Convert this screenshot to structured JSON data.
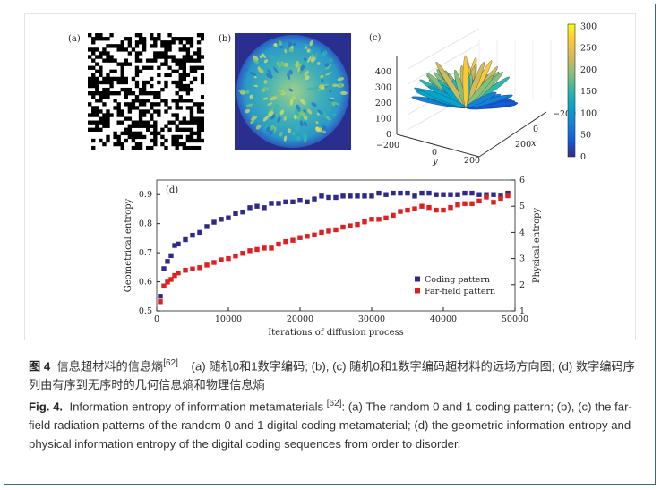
{
  "figure": {
    "panels": {
      "a": "(a)",
      "b": "(b)",
      "c": "(c)",
      "d": "(d)"
    },
    "panel_c": {
      "z_ticks": [
        "0",
        "100",
        "200",
        "300",
        "400"
      ],
      "y_ticks": [
        "−200",
        "0",
        "200"
      ],
      "x_ticks": [
        "−200",
        "0",
        "200"
      ],
      "y_label": "y",
      "x_label": "x",
      "colorbar_ticks": [
        "0",
        "50",
        "100",
        "150",
        "200",
        "250",
        "300"
      ],
      "colormap": [
        "#352a87",
        "#0f5cdd",
        "#1481d6",
        "#06a4ca",
        "#2eb7a4",
        "#87bf77",
        "#d1bb59",
        "#fec832",
        "#f9fb0e"
      ]
    }
  },
  "chart_data": {
    "type": "scatter",
    "panel_label": "(d)",
    "xlabel": "Iterations of diffusion process",
    "ylabel_left": "Geometrical entropy",
    "ylabel_right": "Physical entropy",
    "xlim": [
      0,
      50000
    ],
    "ylim_left": [
      0.5,
      0.95
    ],
    "ylim_right": [
      1,
      6
    ],
    "x_ticks": [
      "0",
      "10000",
      "20000",
      "30000",
      "40000",
      "50000"
    ],
    "y_left_ticks": [
      "0.5",
      "0.6",
      "0.7",
      "0.8",
      "0.9"
    ],
    "y_right_ticks": [
      "1",
      "2",
      "3",
      "4",
      "5",
      "6"
    ],
    "legend_position": "bottom-right",
    "x": [
      500,
      1000,
      1500,
      2000,
      2500,
      3000,
      4000,
      5000,
      6000,
      7000,
      8000,
      9000,
      10000,
      11000,
      12000,
      13000,
      14000,
      15000,
      16000,
      17000,
      18000,
      19000,
      20000,
      21000,
      22000,
      23000,
      24000,
      25000,
      26000,
      27000,
      28000,
      29000,
      30000,
      31000,
      32000,
      33000,
      34000,
      35000,
      36000,
      37000,
      38000,
      39000,
      40000,
      41000,
      42000,
      43000,
      44000,
      45000,
      46000,
      47000,
      48000,
      49000
    ],
    "series": [
      {
        "name": "Coding pattern",
        "axis": "left",
        "color": "#2f2a8a",
        "values": [
          0.55,
          0.645,
          0.67,
          0.69,
          0.725,
          0.73,
          0.745,
          0.76,
          0.77,
          0.79,
          0.805,
          0.815,
          0.82,
          0.835,
          0.84,
          0.855,
          0.86,
          0.855,
          0.87,
          0.87,
          0.875,
          0.875,
          0.88,
          0.875,
          0.885,
          0.895,
          0.89,
          0.89,
          0.895,
          0.895,
          0.895,
          0.895,
          0.895,
          0.905,
          0.9,
          0.905,
          0.905,
          0.905,
          0.895,
          0.905,
          0.905,
          0.9,
          0.9,
          0.9,
          0.9,
          0.905,
          0.905,
          0.9,
          0.9,
          0.9,
          0.895,
          0.905
        ]
      },
      {
        "name": "Far-field pattern",
        "axis": "right",
        "color": "#e02020",
        "values": [
          1.35,
          1.95,
          2.1,
          2.2,
          2.35,
          2.45,
          2.55,
          2.6,
          2.65,
          2.75,
          2.85,
          2.95,
          3.0,
          3.1,
          3.2,
          3.3,
          3.35,
          3.4,
          3.4,
          3.55,
          3.65,
          3.7,
          3.8,
          3.85,
          3.9,
          4.0,
          4.05,
          4.1,
          4.2,
          4.25,
          4.3,
          4.4,
          4.5,
          4.5,
          4.55,
          4.65,
          4.8,
          4.85,
          4.9,
          5.0,
          4.95,
          4.85,
          4.85,
          4.95,
          5.05,
          5.1,
          5.1,
          5.2,
          5.35,
          5.15,
          5.3,
          5.4
        ]
      }
    ]
  },
  "caption": {
    "cn_label": "图 4",
    "cn_text": "信息超材料的信息熵",
    "cn_ref": "[62]",
    "cn_rest": "(a) 随机0和1数字编码; (b), (c) 随机0和1数字编码超材料的远场方向图; (d) 数字编码序列由有序到无序时的几何信息熵和物理信息熵",
    "en_label": "Fig. 4.",
    "en_text": "Information entropy of information metamaterials ",
    "en_ref": "[62]",
    "en_rest": ": (a) The random 0 and 1 coding pattern; (b), (c) the far-field radiation patterns of the random 0 and 1 digital coding metamaterial; (d) the geometric information entropy and physical information entropy of the digital coding sequences from order to disorder."
  }
}
